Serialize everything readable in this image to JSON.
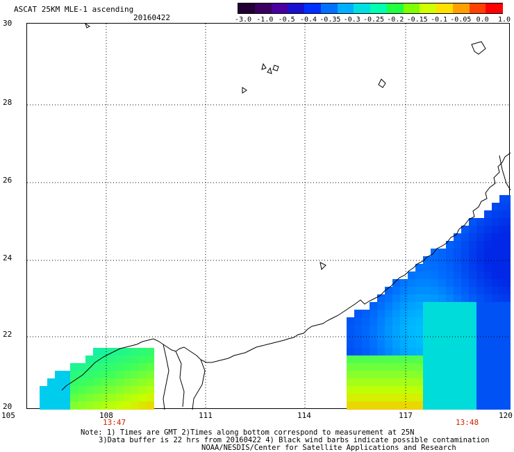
{
  "header": {
    "title": "ASCAT 25KM MLE-1 ascending",
    "date": "20160422"
  },
  "colorbar": {
    "colors": [
      "#220033",
      "#3a005f",
      "#4a00a0",
      "#1a10d0",
      "#0030ff",
      "#0070ff",
      "#00b0ff",
      "#00e0e0",
      "#00ffb0",
      "#20ff40",
      "#80ff00",
      "#d0ff00",
      "#ffe000",
      "#ffa000",
      "#ff4000",
      "#ff0000"
    ],
    "labels": [
      "-3.0",
      "-1.0",
      "-0.5",
      "-0.4",
      "-0.35",
      "-0.3",
      "-0.25",
      "-0.2",
      "-0.15",
      "-0.1",
      "-0.05",
      "0.0",
      "1.0"
    ]
  },
  "axes": {
    "lat_labels": [
      "30",
      "28",
      "26",
      "24",
      "22",
      "20"
    ],
    "lon_labels": [
      "105",
      "108",
      "111",
      "114",
      "117",
      "120"
    ]
  },
  "time_labels": {
    "left": "13:47",
    "right": "13:48"
  },
  "notes": {
    "line1": "Note: 1) Times are GMT 2)Times along bottom correspond to measurement at 25N",
    "line2": "3)Data buffer is 22 hrs from 20160422 4) Black wind barbs indicate possible contamination",
    "line3": "NOAA/NESDIS/Center for Satellite Applications and Research"
  }
}
